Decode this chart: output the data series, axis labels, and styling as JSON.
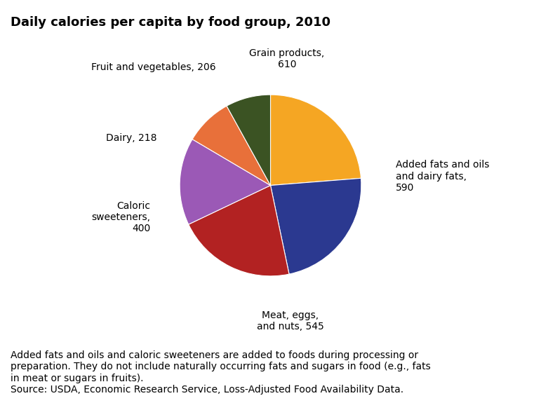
{
  "title": "Daily calories per capita by food group, 2010",
  "slice_labels": [
    "Grain products,\n610",
    "Added fats and oils\nand dairy fats,\n590",
    "Meat, eggs,\nand nuts, 545",
    "Caloric\nsweeteners,\n400",
    "Dairy, 218",
    "Fruit and vegetables, 206"
  ],
  "values": [
    610,
    590,
    545,
    400,
    218,
    206
  ],
  "colors": [
    "#F5A623",
    "#2B3990",
    "#B22222",
    "#9B59B6",
    "#E8703A",
    "#3B5323"
  ],
  "footnote_line1": "Added fats and oils and caloric sweeteners are added to foods during processing or",
  "footnote_line2": "preparation. They do not include naturally occurring fats and sugars in food (e.g., fats",
  "footnote_line3": "in meat or sugars in fruits).",
  "footnote_line4": "Source: USDA, Economic Research Service, Loss-Adjusted Food Availability Data.",
  "title_fontsize": 13,
  "label_fontsize": 10,
  "footnote_fontsize": 10
}
